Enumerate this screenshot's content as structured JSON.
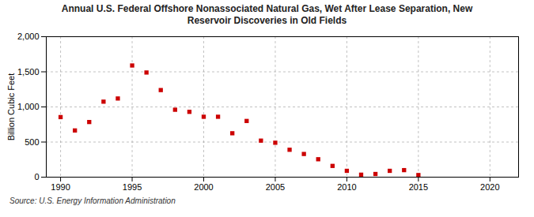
{
  "chart_data": {
    "type": "scatter",
    "title": "Annual U.S. Federal Offshore Nonassociated Natural Gas, Wet After Lease Separation, New\nReservoir Discoveries in Old Fields",
    "ylabel": "Billion Cubic Feet",
    "annotations": [
      "Source: U.S. Energy Information Administration"
    ],
    "x": [
      1990,
      1991,
      1992,
      1993,
      1994,
      1995,
      1996,
      1997,
      1998,
      1999,
      2000,
      2001,
      2002,
      2003,
      2004,
      2005,
      2006,
      2007,
      2008,
      2009,
      2010,
      2011,
      2012,
      2013,
      2014,
      2015
    ],
    "values": [
      855,
      665,
      785,
      1075,
      1120,
      1590,
      1490,
      1240,
      960,
      930,
      860,
      860,
      625,
      800,
      520,
      490,
      390,
      330,
      255,
      160,
      90,
      35,
      45,
      90,
      100,
      30
    ],
    "color": "#cc0000",
    "marker": "square",
    "xlim": [
      1989,
      2022
    ],
    "xticks": [
      1990,
      1995,
      2000,
      2005,
      2010,
      2015,
      2020
    ],
    "ylim": [
      0,
      2000
    ],
    "yticks": [
      0,
      500,
      {
        "value": 1000,
        "label": "1,000"
      },
      {
        "value": 1500,
        "label": "1,500"
      },
      {
        "value": 2000,
        "label": "2,000"
      }
    ],
    "grid": true
  }
}
